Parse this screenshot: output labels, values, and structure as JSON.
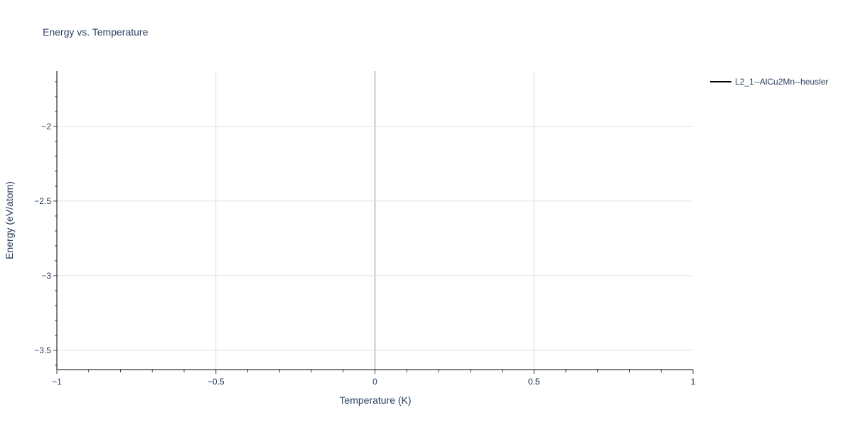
{
  "chart_data": {
    "type": "line",
    "title": "Energy vs. Temperature",
    "xlabel": "Temperature (K)",
    "ylabel": "Energy (eV/atom)",
    "xlim": [
      -1,
      1
    ],
    "ylim": [
      -3.629,
      -1.629
    ],
    "xticks": [
      -1,
      -0.5,
      0,
      0.5,
      1
    ],
    "xtick_labels": [
      "−1",
      "−0.5",
      "0",
      "0.5",
      "1"
    ],
    "yticks": [
      -2,
      -2.5,
      -3,
      -3.5
    ],
    "ytick_labels": [
      "−2",
      "−2.5",
      "−3",
      "−3.5"
    ],
    "minor_tick_step": 0.1,
    "grid": true,
    "legend_placement": "top-right",
    "series": [
      {
        "name": "L2_1--AlCu2Mn--heusler",
        "color": "#000000",
        "x": [],
        "y": []
      }
    ]
  }
}
